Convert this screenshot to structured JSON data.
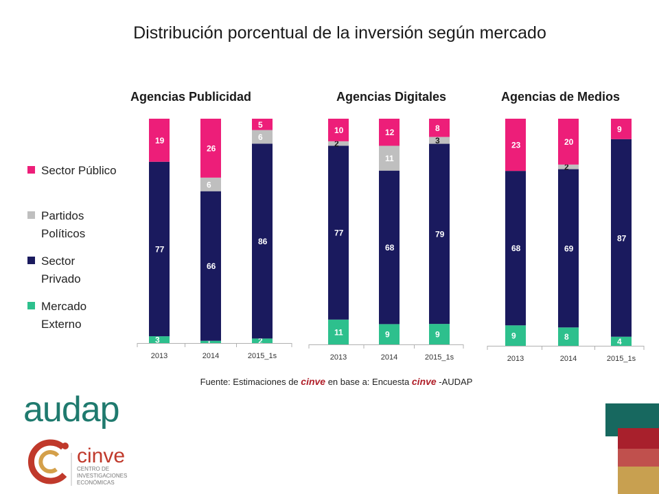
{
  "title": "Distribución porcentual de la inversión según mercado",
  "legend": [
    {
      "label": "Sector Público",
      "color": "#ed1e79"
    },
    {
      "label": "Partidos Políticos",
      "color": "#bfbfbf"
    },
    {
      "label": "Sector Privado",
      "color": "#1a1a5e"
    },
    {
      "label": "Mercado Externo",
      "color": "#2dc08d"
    }
  ],
  "chart_data": [
    {
      "type": "bar",
      "stacked": true,
      "title": "Agencias Publicidad",
      "categories": [
        "2013",
        "2014",
        "2015_1s"
      ],
      "series": [
        {
          "name": "Mercado Externo",
          "values": [
            3,
            1,
            2
          ]
        },
        {
          "name": "Sector Privado",
          "values": [
            77,
            66,
            86
          ]
        },
        {
          "name": "Partidos Políticos",
          "values": [
            0,
            6,
            6
          ]
        },
        {
          "name": "Sector Público",
          "values": [
            19,
            26,
            5
          ]
        }
      ],
      "value_labels": [
        [
          "3",
          "1",
          "2"
        ],
        [
          "77",
          "66",
          "86"
        ],
        [
          "",
          "6",
          "6"
        ],
        [
          "19",
          "26",
          "5"
        ]
      ],
      "ylim": [
        0,
        100
      ]
    },
    {
      "type": "bar",
      "stacked": true,
      "title": "Agencias Digitales",
      "categories": [
        "2013",
        "2014",
        "2015_1s"
      ],
      "series": [
        {
          "name": "Mercado Externo",
          "values": [
            11,
            9,
            9
          ]
        },
        {
          "name": "Sector Privado",
          "values": [
            77,
            68,
            79
          ]
        },
        {
          "name": "Partidos Políticos",
          "values": [
            2,
            11,
            3
          ]
        },
        {
          "name": "Sector Público",
          "values": [
            10,
            12,
            8
          ]
        }
      ],
      "value_labels": [
        [
          "11",
          "9",
          "9"
        ],
        [
          "77",
          "68",
          "79"
        ],
        [
          "2",
          "11",
          "3"
        ],
        [
          "10",
          "12",
          "8"
        ]
      ],
      "ylim": [
        0,
        100
      ]
    },
    {
      "type": "bar",
      "stacked": true,
      "title": "Agencias  de Medios",
      "categories": [
        "2013",
        "2014",
        "2015_1s"
      ],
      "series": [
        {
          "name": "Mercado Externo",
          "values": [
            9,
            8,
            4
          ]
        },
        {
          "name": "Sector Privado",
          "values": [
            68,
            69,
            87
          ]
        },
        {
          "name": "Partidos Políticos",
          "values": [
            0,
            2,
            0
          ]
        },
        {
          "name": "Sector Público",
          "values": [
            23,
            20,
            9
          ]
        }
      ],
      "value_labels": [
        [
          "9",
          "8",
          "4"
        ],
        [
          "68",
          "69",
          "87"
        ],
        [
          "",
          "2",
          ""
        ],
        [
          "23",
          "20",
          "9"
        ]
      ],
      "ylim": [
        0,
        100
      ]
    }
  ],
  "source": {
    "prefix": "Fuente: Estimaciones de ",
    "brand1": "cinve",
    "middle": " en base a: Encuesta ",
    "brand2": "cinve",
    "suffix": " -AUDAP"
  },
  "logos": {
    "audap": "audap",
    "cinve": "cinve",
    "cinve_sub1": "CENTRO DE",
    "cinve_sub2": "INVESTIGACIONES",
    "cinve_sub3": "ECONÓMICAS"
  },
  "colors": {
    "Sector Público": "#ed1e79",
    "Partidos Políticos": "#bfbfbf",
    "Sector Privado": "#1a1a5e",
    "Mercado Externo": "#2dc08d",
    "axis": "#b0b0b0",
    "label_dark": "#1a1a1a",
    "label_light": "#ffffff"
  }
}
